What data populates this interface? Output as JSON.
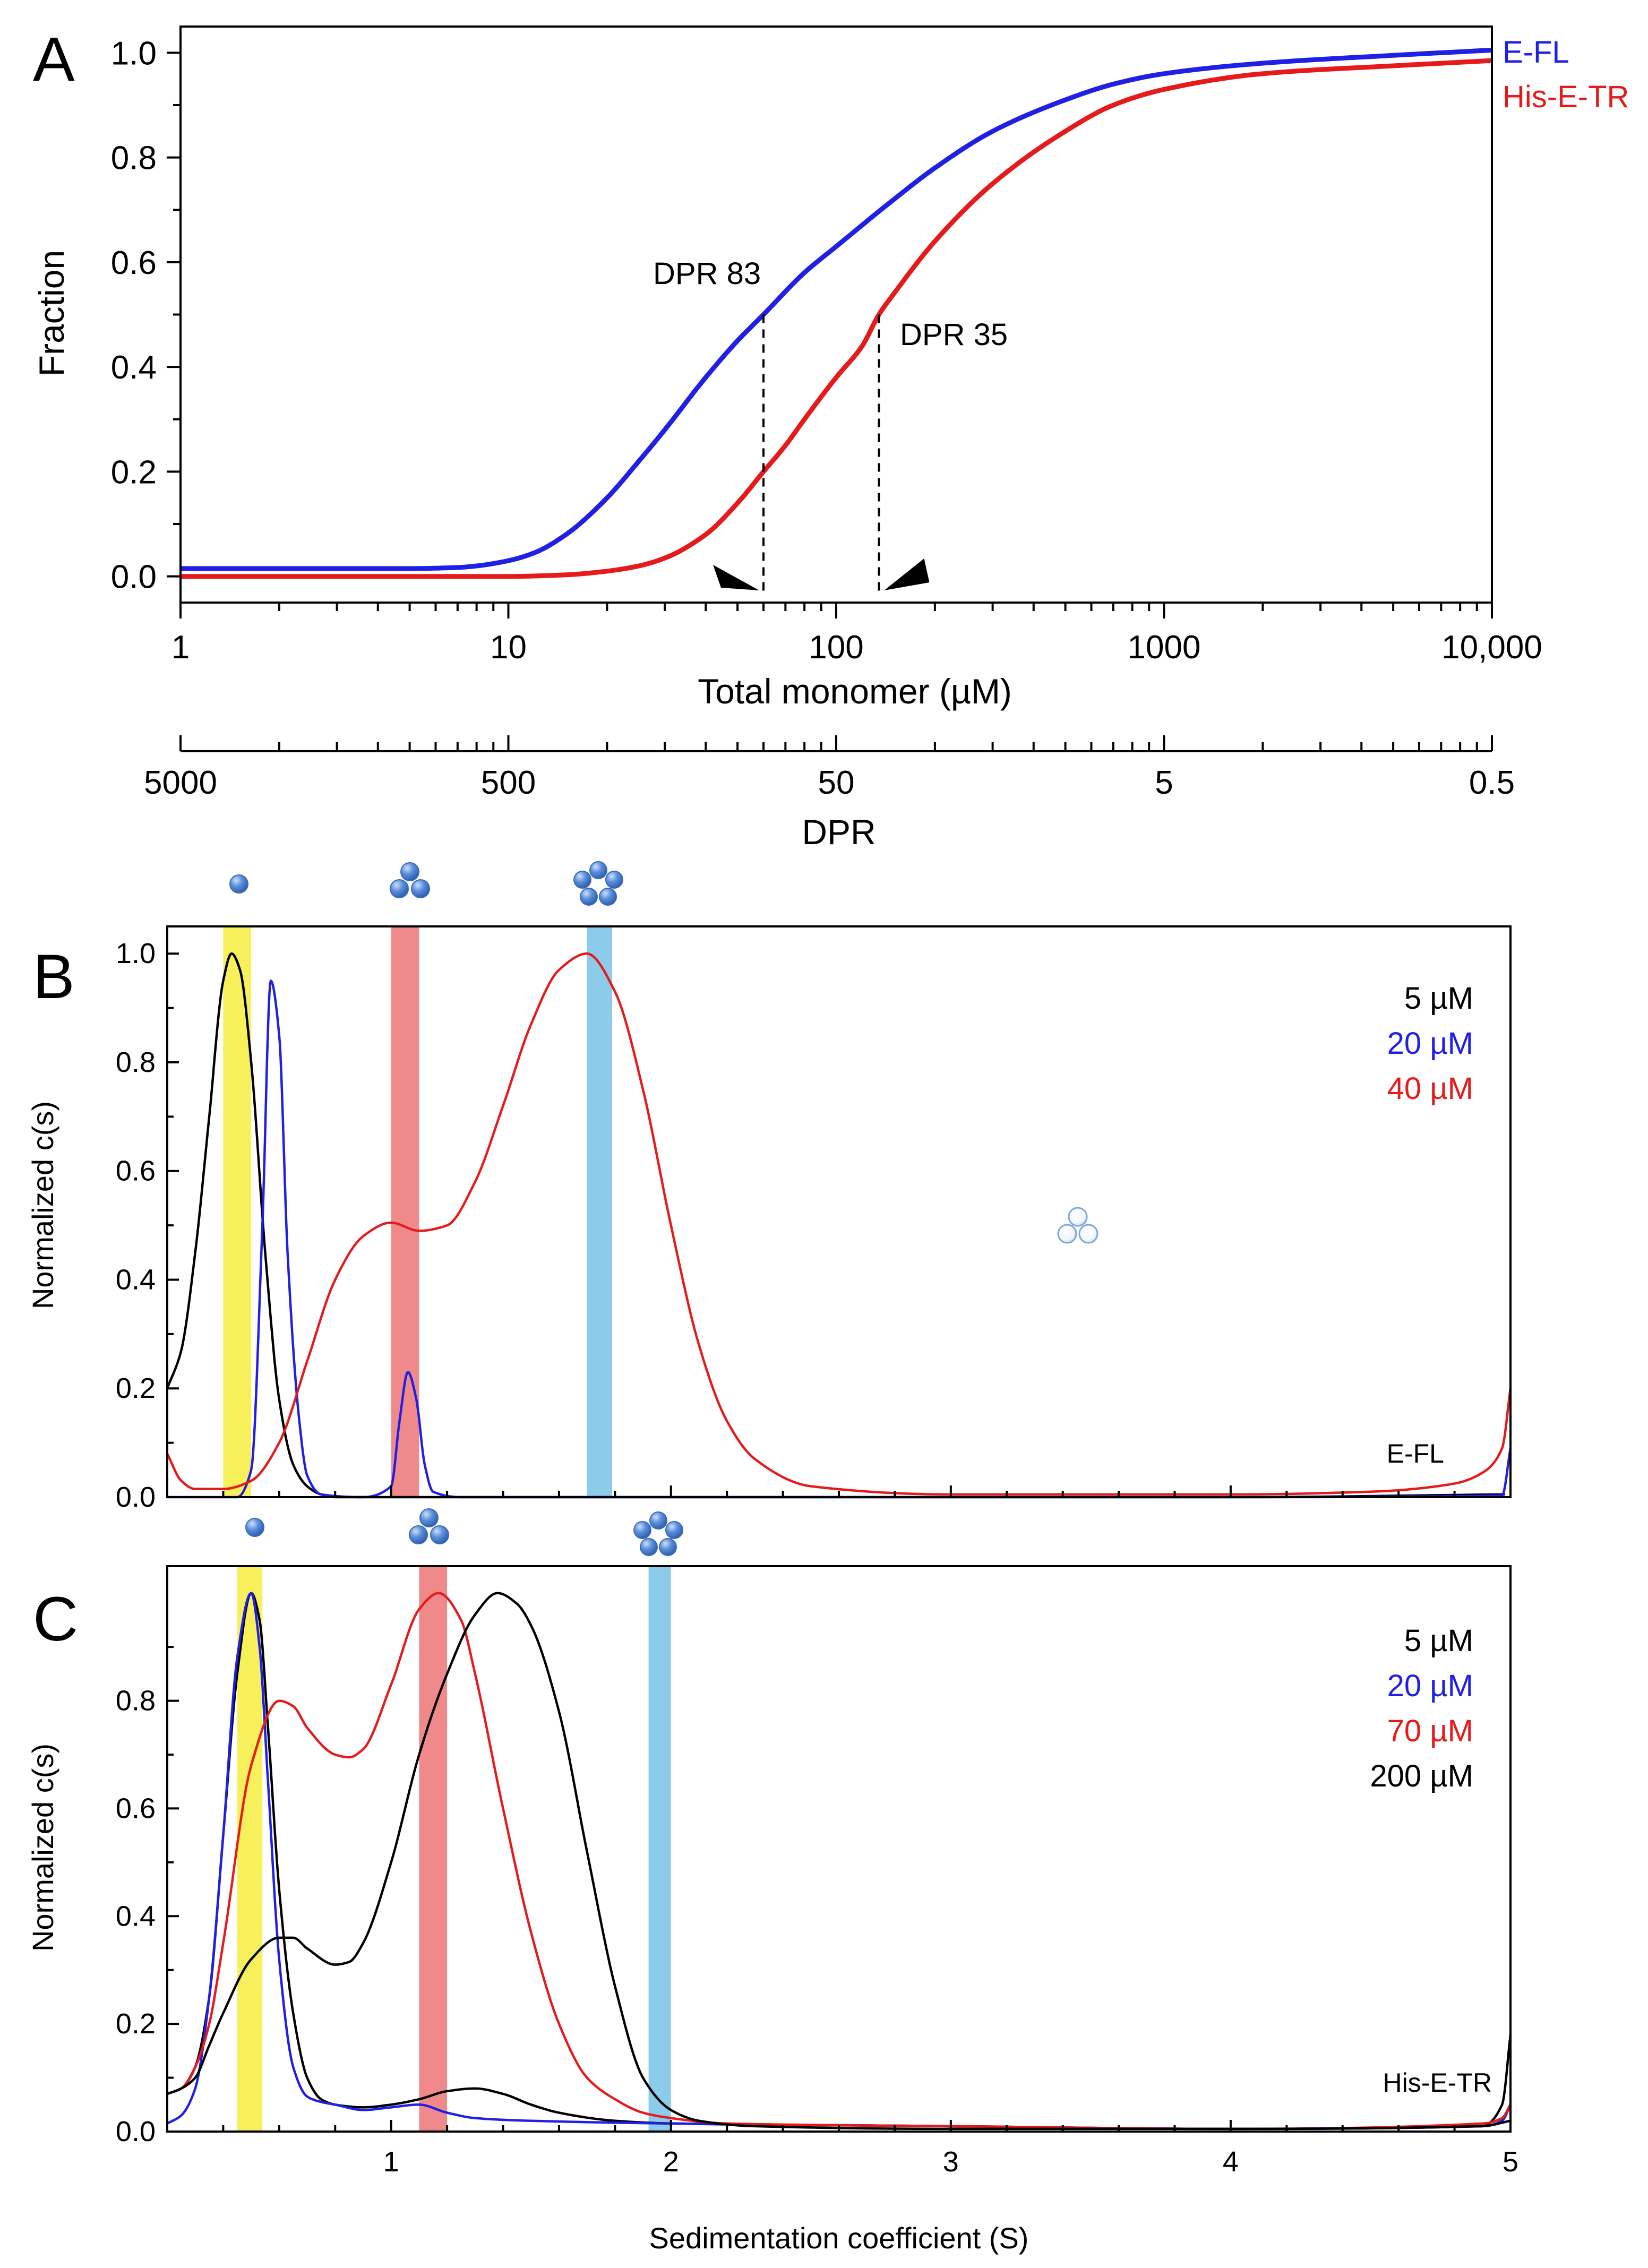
{
  "chart_data": [
    {
      "panel": "A",
      "type": "line",
      "xlabel": "Total monomer (µM)",
      "ylabel": "Fraction",
      "xscale": "log",
      "xlim": [
        1,
        10000
      ],
      "ylim": [
        -0.05,
        1.05
      ],
      "xticks": [
        1,
        10,
        100,
        1000,
        10000
      ],
      "xtick_labels": [
        "1",
        "10",
        "100",
        "1000",
        "10,000"
      ],
      "yticks": [
        0.0,
        0.2,
        0.4,
        0.6,
        0.8,
        1.0
      ],
      "ytick_labels": [
        "0.0",
        "0.2",
        "0.4",
        "0.6",
        "0.8",
        "1.0"
      ],
      "secondary_axis": {
        "xlabel": "DPR",
        "ticks": [
          5000,
          500,
          50,
          5,
          0.5
        ],
        "tick_labels": [
          "5000",
          "500",
          "50",
          "5",
          "0.5"
        ]
      },
      "series": [
        {
          "name": "E-FL",
          "color": "#1f1fe6",
          "x": [
            1,
            5,
            7,
            8,
            10,
            12,
            15,
            20,
            25,
            30,
            40,
            50,
            60,
            80,
            100,
            150,
            200,
            300,
            500,
            700,
            1000,
            2000,
            5000,
            10000
          ],
          "y": [
            0.015,
            0.015,
            0.017,
            0.02,
            0.03,
            0.045,
            0.08,
            0.15,
            0.22,
            0.28,
            0.38,
            0.45,
            0.5,
            0.58,
            0.63,
            0.72,
            0.78,
            0.85,
            0.91,
            0.94,
            0.96,
            0.98,
            0.995,
            1.005
          ]
        },
        {
          "name": "His-E-TR",
          "color": "#e61a1a",
          "x": [
            1,
            10,
            15,
            20,
            25,
            30,
            40,
            50,
            60,
            70,
            80,
            100,
            120,
            135,
            150,
            200,
            300,
            500,
            700,
            1000,
            2000,
            5000,
            10000
          ],
          "y": [
            0.0,
            0.0,
            0.003,
            0.01,
            0.02,
            0.035,
            0.08,
            0.14,
            0.2,
            0.25,
            0.3,
            0.38,
            0.44,
            0.5,
            0.54,
            0.64,
            0.75,
            0.85,
            0.9,
            0.93,
            0.96,
            0.975,
            0.985
          ]
        }
      ],
      "annotations": [
        {
          "text": "DPR 83",
          "x": 60,
          "y": 0.5
        },
        {
          "text": "DPR 35",
          "x": 135,
          "y": 0.5
        }
      ]
    },
    {
      "panel": "B",
      "type": "line",
      "ylabel": "Normalized c(s)",
      "xlim": [
        0.2,
        5
      ],
      "ylim": [
        0,
        1.05
      ],
      "yticks": [
        0.0,
        0.2,
        0.4,
        0.6,
        0.8,
        1.0
      ],
      "ytick_labels": [
        "0.0",
        "0.2",
        "0.4",
        "0.6",
        "0.8",
        "1.0"
      ],
      "sample_label": "E-FL",
      "bands": [
        {
          "x0": 0.4,
          "x1": 0.5,
          "color": "#f7f05a"
        },
        {
          "x0": 1.0,
          "x1": 1.1,
          "color": "#f08a8a"
        },
        {
          "x0": 1.7,
          "x1": 1.79,
          "color": "#8ccbea"
        }
      ],
      "series": [
        {
          "name": "5 µM",
          "color": "#000000",
          "x": [
            0.2,
            0.25,
            0.3,
            0.35,
            0.4,
            0.43,
            0.46,
            0.5,
            0.55,
            0.6,
            0.65,
            0.7,
            0.75,
            0.8,
            1.0,
            2.0,
            4.0,
            4.98
          ],
          "y": [
            0.2,
            0.27,
            0.45,
            0.7,
            0.95,
            1.0,
            0.97,
            0.8,
            0.45,
            0.18,
            0.06,
            0.02,
            0.005,
            0.0,
            0.0,
            0.0,
            0.0,
            0.005
          ]
        },
        {
          "name": "20 µM",
          "color": "#1f1fe6",
          "x": [
            0.2,
            0.45,
            0.5,
            0.54,
            0.57,
            0.6,
            0.63,
            0.67,
            0.7,
            0.75,
            0.9,
            1.0,
            1.03,
            1.06,
            1.09,
            1.12,
            1.15,
            1.25,
            2.0,
            3.0,
            4.0,
            4.97,
            5.0
          ],
          "y": [
            0.0,
            0.0,
            0.05,
            0.5,
            0.95,
            0.85,
            0.45,
            0.15,
            0.04,
            0.005,
            0.0,
            0.02,
            0.14,
            0.23,
            0.18,
            0.06,
            0.01,
            0.0,
            0.0,
            0.0,
            0.0,
            0.003,
            0.09
          ]
        },
        {
          "name": "40 µM",
          "color": "#e61a1a",
          "x": [
            0.2,
            0.25,
            0.3,
            0.4,
            0.5,
            0.6,
            0.7,
            0.8,
            0.9,
            1.0,
            1.1,
            1.2,
            1.3,
            1.4,
            1.5,
            1.6,
            1.7,
            1.8,
            1.9,
            2.0,
            2.1,
            2.2,
            2.3,
            2.5,
            3.0,
            4.0,
            4.5,
            4.8,
            4.9,
            4.97,
            5.0
          ],
          "y": [
            0.08,
            0.03,
            0.015,
            0.015,
            0.03,
            0.1,
            0.25,
            0.4,
            0.48,
            0.505,
            0.49,
            0.5,
            0.58,
            0.72,
            0.87,
            0.97,
            1.0,
            0.93,
            0.75,
            0.5,
            0.28,
            0.14,
            0.07,
            0.02,
            0.005,
            0.005,
            0.01,
            0.025,
            0.045,
            0.09,
            0.2
          ]
        }
      ]
    },
    {
      "panel": "C",
      "type": "line",
      "ylabel": "Normalized c(s)",
      "xlabel": "Sedimentation coefficient (S)",
      "xlim": [
        0.2,
        5
      ],
      "ylim": [
        0,
        1.05
      ],
      "xticks": [
        1,
        2,
        3,
        4,
        5
      ],
      "xtick_labels": [
        "1",
        "2",
        "3",
        "4",
        "5"
      ],
      "yticks": [
        0.0,
        0.2,
        0.4,
        0.6,
        0.8
      ],
      "ytick_labels": [
        "0.0",
        "0.2",
        "0.4",
        "0.6",
        "0.8"
      ],
      "sample_label": "His-E-TR",
      "bands": [
        {
          "x0": 0.45,
          "x1": 0.54,
          "color": "#f7f05a"
        },
        {
          "x0": 1.1,
          "x1": 1.2,
          "color": "#f08a8a"
        },
        {
          "x0": 1.92,
          "x1": 2.0,
          "color": "#8ccbea"
        }
      ],
      "series": [
        {
          "name": "5 µM",
          "color": "#000000",
          "x": [
            0.2,
            0.25,
            0.3,
            0.35,
            0.4,
            0.45,
            0.5,
            0.53,
            0.56,
            0.6,
            0.65,
            0.7,
            0.75,
            0.8,
            0.9,
            1.0,
            1.1,
            1.2,
            1.3,
            1.4,
            1.5,
            1.6,
            1.8,
            2.0,
            3.0,
            4.0,
            4.9,
            4.97,
            5.0
          ],
          "y": [
            0.07,
            0.08,
            0.12,
            0.25,
            0.55,
            0.85,
            1.0,
            0.95,
            0.75,
            0.45,
            0.22,
            0.1,
            0.06,
            0.05,
            0.045,
            0.05,
            0.06,
            0.075,
            0.08,
            0.07,
            0.05,
            0.035,
            0.02,
            0.015,
            0.01,
            0.005,
            0.01,
            0.05,
            0.18
          ]
        },
        {
          "name": "20 µM",
          "color": "#1f1fe6",
          "x": [
            0.2,
            0.25,
            0.3,
            0.35,
            0.4,
            0.45,
            0.5,
            0.53,
            0.56,
            0.6,
            0.65,
            0.7,
            0.75,
            0.8,
            0.9,
            1.0,
            1.1,
            1.2,
            1.3,
            1.5,
            2.0,
            3.0,
            4.0,
            4.9,
            4.97,
            5.0
          ],
          "y": [
            0.015,
            0.03,
            0.08,
            0.25,
            0.55,
            0.88,
            1.0,
            0.9,
            0.65,
            0.32,
            0.12,
            0.065,
            0.055,
            0.05,
            0.04,
            0.045,
            0.05,
            0.035,
            0.025,
            0.02,
            0.015,
            0.01,
            0.005,
            0.01,
            0.02,
            0.05
          ]
        },
        {
          "name": "70 µM",
          "color": "#e61a1a",
          "x": [
            0.2,
            0.25,
            0.3,
            0.35,
            0.4,
            0.5,
            0.6,
            0.65,
            0.7,
            0.8,
            0.85,
            0.9,
            1.0,
            1.1,
            1.17,
            1.25,
            1.3,
            1.4,
            1.5,
            1.6,
            1.7,
            1.8,
            1.9,
            2.0,
            2.2,
            3.0,
            4.0,
            4.9,
            4.97,
            5.0
          ],
          "y": [
            0.07,
            0.08,
            0.12,
            0.2,
            0.35,
            0.68,
            0.8,
            0.79,
            0.75,
            0.7,
            0.695,
            0.71,
            0.83,
            0.97,
            1.0,
            0.95,
            0.85,
            0.6,
            0.37,
            0.2,
            0.1,
            0.06,
            0.035,
            0.025,
            0.015,
            0.01,
            0.005,
            0.015,
            0.025,
            0.05
          ]
        },
        {
          "name": "200 µM",
          "color": "#000000",
          "x": [
            0.2,
            0.25,
            0.3,
            0.35,
            0.4,
            0.5,
            0.6,
            0.65,
            0.7,
            0.8,
            0.85,
            0.9,
            1.0,
            1.1,
            1.2,
            1.3,
            1.38,
            1.45,
            1.5,
            1.6,
            1.7,
            1.8,
            1.9,
            2.0,
            2.1,
            2.3,
            3.0,
            4.0,
            4.9,
            5.0
          ],
          "y": [
            0.07,
            0.08,
            0.1,
            0.16,
            0.22,
            0.32,
            0.36,
            0.36,
            0.34,
            0.31,
            0.315,
            0.35,
            0.5,
            0.7,
            0.85,
            0.96,
            1.0,
            0.98,
            0.94,
            0.78,
            0.52,
            0.27,
            0.1,
            0.04,
            0.02,
            0.01,
            0.005,
            0.005,
            0.01,
            0.02
          ]
        }
      ]
    }
  ],
  "icon_markers": {
    "monomer": "monomer-sphere-icon",
    "trimer": "trimer-spheres-icon",
    "pentamer": "pentamer-spheres-icon",
    "hollow_trimer": "hollow-trimer-icon",
    "sphere_color": "#5a8fdc"
  },
  "panel_letters": [
    "A",
    "B",
    "C"
  ]
}
